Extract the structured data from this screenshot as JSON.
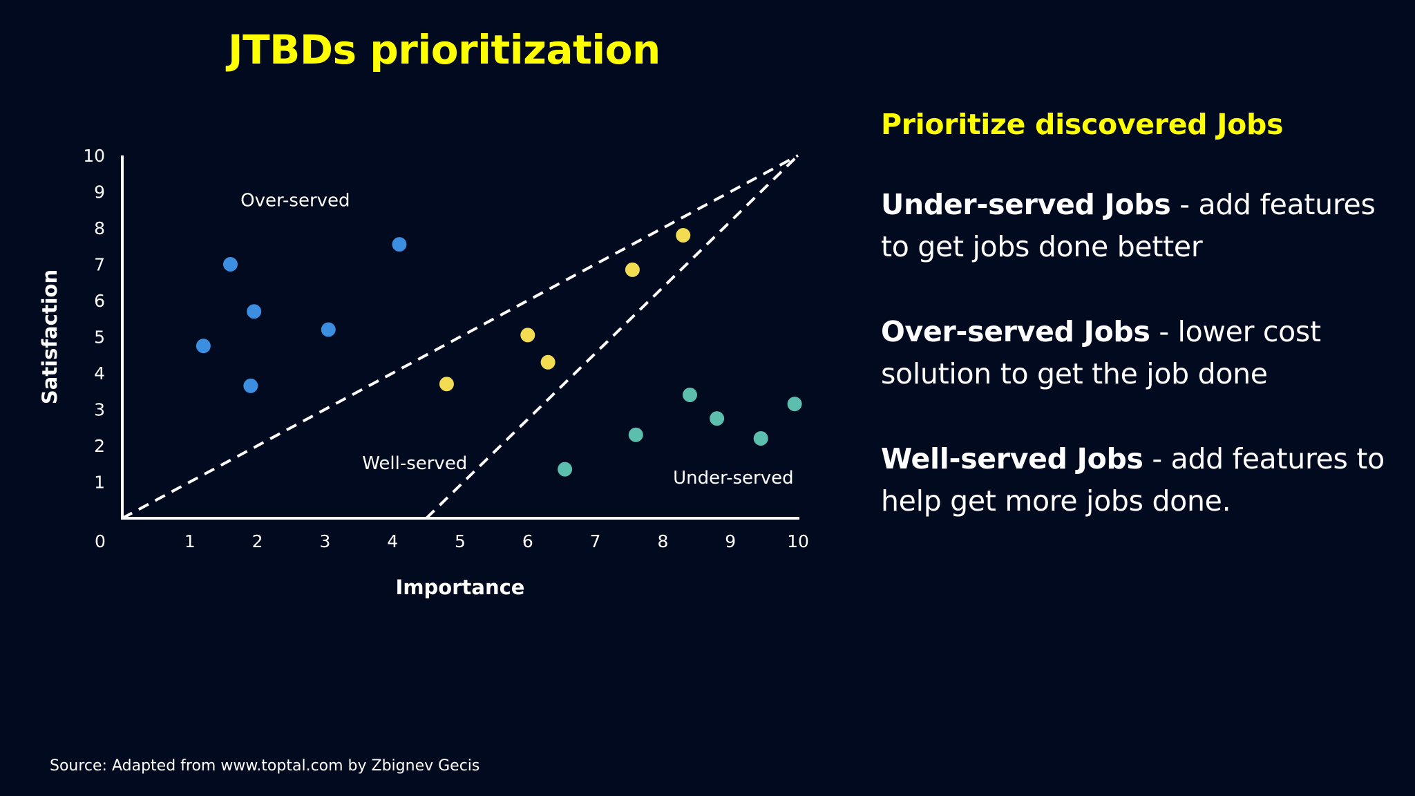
{
  "slide": {
    "title": "JTBDs prioritization",
    "source": "Source: Adapted from www.toptal.com by Zbignev Gecis"
  },
  "side_panel": {
    "heading": "Prioritize discovered Jobs",
    "items": [
      {
        "bold": "Under-served Jobs",
        "text": " - add features to get jobs done better"
      },
      {
        "bold": "Over-served Jobs",
        "text": " - lower cost solution to get the job done"
      },
      {
        "bold": "Well-served Jobs",
        "text": " - add features to help get more jobs done."
      }
    ]
  },
  "colors": {
    "background": "#020a1f",
    "title": "#ffff00",
    "over_served": "#3c8fe0",
    "well_served": "#f4dc52",
    "under_served": "#5cbfae",
    "axis": "#ffffff"
  },
  "chart_data": {
    "type": "scatter",
    "xlabel": "Importance",
    "ylabel": "Satisfaction",
    "xlim": [
      0,
      10
    ],
    "ylim": [
      0,
      10
    ],
    "x_ticks": [
      "0",
      "1",
      "2",
      "3",
      "4",
      "5",
      "6",
      "7",
      "8",
      "9",
      "10"
    ],
    "y_ticks": [
      "1",
      "2",
      "3",
      "4",
      "5",
      "6",
      "7",
      "8",
      "9",
      "10"
    ],
    "grid": false,
    "series": [
      {
        "color": "#3c8fe0",
        "points": [
          [
            1.6,
            7.0
          ],
          [
            1.95,
            5.7
          ],
          [
            3.05,
            5.2
          ],
          [
            4.1,
            7.55
          ],
          [
            1.2,
            4.75
          ],
          [
            1.9,
            3.65
          ]
        ]
      },
      {
        "color": "#f4dc52",
        "points": [
          [
            8.3,
            7.8
          ],
          [
            7.55,
            6.85
          ],
          [
            6.0,
            5.05
          ],
          [
            6.3,
            4.3
          ],
          [
            4.8,
            3.7
          ]
        ]
      },
      {
        "color": "#5cbfae",
        "points": [
          [
            8.4,
            3.4
          ],
          [
            8.8,
            2.75
          ],
          [
            9.45,
            2.2
          ],
          [
            9.95,
            3.15
          ],
          [
            7.6,
            2.3
          ],
          [
            6.55,
            1.35
          ]
        ]
      }
    ],
    "dividers": [
      {
        "from": [
          0,
          0
        ],
        "to": [
          10,
          10
        ]
      },
      {
        "from": [
          4.5,
          0
        ],
        "to": [
          10,
          10
        ]
      }
    ],
    "annotations": [
      {
        "text": "Over-served",
        "x": 1.75,
        "y": 8.6
      },
      {
        "text": "Well-served",
        "x": 3.55,
        "y": 1.35
      },
      {
        "text": "Under-served",
        "x": 8.15,
        "y": 0.95
      }
    ]
  }
}
